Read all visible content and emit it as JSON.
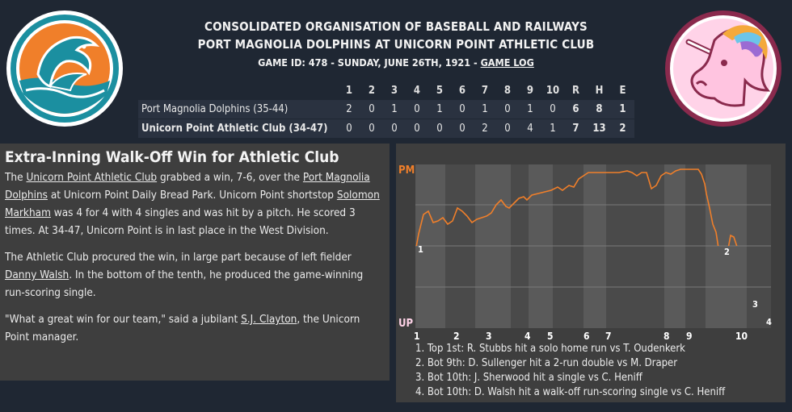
{
  "header": {
    "league": "CONSOLIDATED ORGANISATION OF BASEBALL AND RAILWAYS",
    "matchup": "PORT MAGNOLIA DOLPHINS AT UNICORN POINT ATHLETIC CLUB",
    "game_info": "GAME ID: 478 - SUNDAY, JUNE 26TH, 1921 - ",
    "game_log_link": "GAME LOG"
  },
  "colors": {
    "background": "#1f2733",
    "panel": "#3e3e3e",
    "accent_orange": "#f07f2a",
    "accent_pink": "#ffd3e8",
    "dolphins_teal": "#1b8fa0",
    "unicorn_maroon": "#8a2a4d"
  },
  "logos": {
    "left": "dolphins-logo",
    "right": "unicorn-logo"
  },
  "linescore": {
    "headers": [
      "1",
      "2",
      "3",
      "4",
      "5",
      "6",
      "7",
      "8",
      "9",
      "10",
      "R",
      "H",
      "E"
    ],
    "rows": [
      {
        "team": "Port Magnolia Dolphins (35-44)",
        "innings": [
          "2",
          "0",
          "1",
          "0",
          "1",
          "0",
          "1",
          "0",
          "1",
          "0"
        ],
        "r": "6",
        "h": "8",
        "e": "1"
      },
      {
        "team": "Unicorn Point Athletic Club (34-47)",
        "innings": [
          "0",
          "0",
          "0",
          "0",
          "0",
          "0",
          "2",
          "0",
          "4",
          "1"
        ],
        "r": "7",
        "h": "13",
        "e": "2"
      }
    ]
  },
  "story": {
    "headline": "Extra-Inning Walk-Off Win for Athletic Club",
    "p1": {
      "t1": "The ",
      "l1": "Unicorn Point Athletic Club",
      "t2": " grabbed a win, 7-6, over the ",
      "l2": "Port Magnolia Dolphins",
      "t3": " at Unicorn Point Daily Bread Park. Unicorn Point shortstop ",
      "l3": "Solomon Markham",
      "t4": " was 4 for 4 with 4 singles and was hit by a pitch. He scored 3 times. At 34-47, Unicorn Point is in last place in the West Division."
    },
    "p2": {
      "t1": "The Athletic Club procured the win, in large part because of left fielder ",
      "l1": "Danny Walsh",
      "t2": ". In the bottom of the tenth, he produced the game-winning run-scoring single."
    },
    "p3": {
      "t1": "\"What a great win for our team,\" said a jubilant ",
      "l1": "S.J. Clayton",
      "t2": ", the Unicorn Point manager."
    }
  },
  "win_probability": {
    "top_label": "PM",
    "bottom_label": "UP",
    "inning_labels": [
      "1",
      "2",
      "3",
      "4",
      "5",
      "6",
      "7",
      "8",
      "9",
      "10"
    ],
    "markers": [
      "1",
      "2",
      "3",
      "4"
    ],
    "notes": [
      "1. Top 1st: R. Stubbs hit a solo home run vs T. Oudenkerk",
      "2. Bot 9th: D. Sullenger hit a 2-run double vs M. Draper",
      "3. Bot 10th: J. Sherwood hit a single vs C. Heniff",
      "4. Bot 10th: D. Walsh hit a walk-off run-scoring single vs C. Heniff"
    ]
  }
}
